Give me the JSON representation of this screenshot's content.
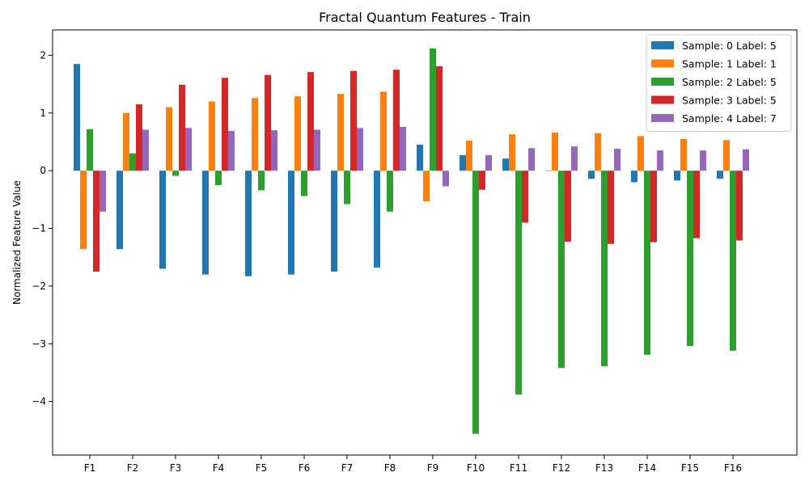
{
  "chart_data": {
    "type": "bar",
    "title": "Fractal Quantum Features - Train",
    "xlabel": "",
    "ylabel": "Normalized Feature Value",
    "categories": [
      "F1",
      "F2",
      "F3",
      "F4",
      "F5",
      "F6",
      "F7",
      "F8",
      "F9",
      "F10",
      "F11",
      "F12",
      "F13",
      "F14",
      "F15",
      "F16"
    ],
    "ylim": [
      -4.93,
      2.44
    ],
    "yticks": [
      -4,
      -3,
      -2,
      -1,
      0,
      1,
      2
    ],
    "ytick_labels": [
      "−4",
      "−3",
      "−2",
      "−1",
      "0",
      "1",
      "2"
    ],
    "grid": false,
    "legend_position": "top-right",
    "series": [
      {
        "name": "Sample: 0 Label: 5",
        "color": "#1f77b4",
        "values": [
          1.85,
          -1.36,
          -1.7,
          -1.8,
          -1.83,
          -1.8,
          -1.75,
          -1.68,
          0.45,
          0.27,
          0.21,
          0.0,
          -0.14,
          -0.2,
          -0.17,
          -0.14
        ]
      },
      {
        "name": "Sample: 1 Label: 1",
        "color": "#ff7f0e",
        "values": [
          -1.36,
          1.0,
          1.1,
          1.2,
          1.26,
          1.29,
          1.33,
          1.37,
          -0.53,
          0.52,
          0.63,
          0.66,
          0.65,
          0.6,
          0.55,
          0.53
        ]
      },
      {
        "name": "Sample: 2 Label: 5",
        "color": "#2ca02c",
        "values": [
          0.72,
          0.3,
          -0.09,
          -0.25,
          -0.34,
          -0.44,
          -0.58,
          -0.71,
          2.12,
          -4.56,
          -3.88,
          -3.42,
          -3.39,
          -3.19,
          -3.04,
          -3.12
        ]
      },
      {
        "name": "Sample: 3 Label: 5",
        "color": "#d62728",
        "values": [
          -1.75,
          1.15,
          1.49,
          1.61,
          1.66,
          1.71,
          1.73,
          1.75,
          1.81,
          -0.33,
          -0.9,
          -1.23,
          -1.27,
          -1.24,
          -1.17,
          -1.21
        ]
      },
      {
        "name": "Sample: 4 Label: 7",
        "color": "#9467bd",
        "values": [
          -0.71,
          0.71,
          0.74,
          0.69,
          0.7,
          0.71,
          0.74,
          0.76,
          -0.27,
          0.27,
          0.39,
          0.42,
          0.38,
          0.35,
          0.35,
          0.37
        ]
      }
    ]
  }
}
